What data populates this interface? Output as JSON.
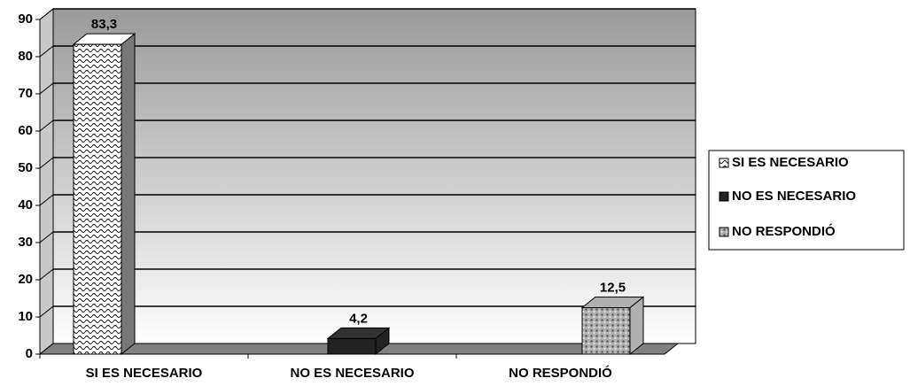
{
  "chart_data": {
    "type": "bar",
    "categories": [
      "SI ES NECESARIO",
      "NO ES NECESARIO",
      "NO RESPONDIÓ"
    ],
    "values": [
      83.3,
      4.2,
      12.5
    ],
    "value_labels": [
      "83,3",
      "4,2",
      "12,5"
    ],
    "colors": [
      "#ffffff",
      "#222222",
      "#b0b0b0"
    ],
    "ylim": [
      0,
      90
    ],
    "yticks": [
      0,
      10,
      20,
      30,
      40,
      50,
      60,
      70,
      80,
      90
    ],
    "grid": true,
    "legend": "right"
  }
}
